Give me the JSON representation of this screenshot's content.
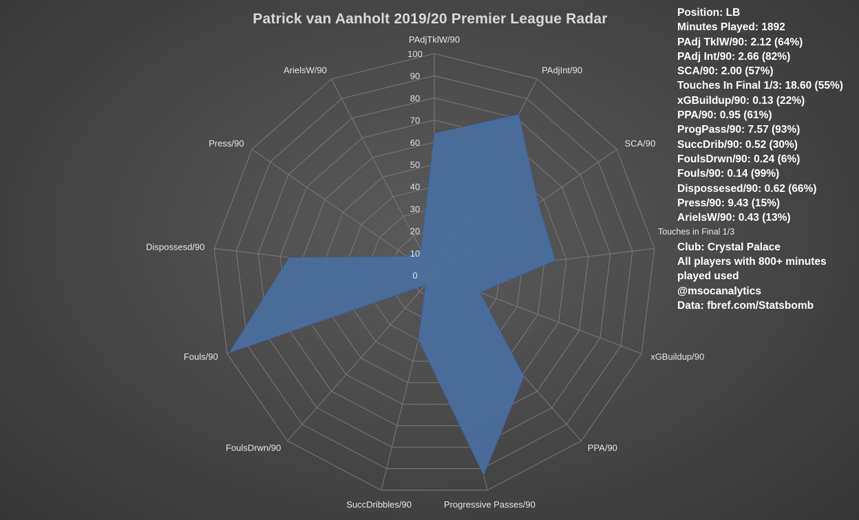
{
  "chart_data": {
    "type": "radar",
    "title": "Patrick van Aanholt 2019/20 Premier League Radar",
    "categories": [
      "PAdjTklW/90",
      "PAdjInt/90",
      "SCA/90",
      "Touches in Final 1/3",
      "xGBuildup/90",
      "PPA/90",
      "Progressive Passes/90",
      "SuccDribbles/90",
      "FoulsDrwn/90",
      "Fouls/90",
      "Dispossesd/90",
      "Press/90",
      "ArielsW/90"
    ],
    "values": [
      64,
      82,
      57,
      55,
      22,
      61,
      93,
      30,
      6,
      99,
      66,
      15,
      13
    ],
    "ylim": [
      0,
      100
    ],
    "ticks": [
      "0",
      "10",
      "20",
      "30",
      "40",
      "50",
      "60",
      "70",
      "80",
      "90",
      "100"
    ],
    "grid": true,
    "series_color": "#4a6fa0"
  },
  "info": {
    "lines": [
      "Position: LB",
      "Minutes Played: 1892",
      "PAdj TklW/90: 2.12 (64%)",
      "PAdj Int/90: 2.66 (82%)",
      "SCA/90: 2.00 (57%)",
      "Touches In Final 1/3: 18.60 (55%)",
      "xGBuildup/90: 0.13 (22%)",
      "PPA/90: 0.95 (61%)",
      "ProgPass/90: 7.57 (93%)",
      "SuccDrib/90: 0.52 (30%)",
      "FoulsDrwn/90: 0.24 (6%)",
      "Fouls/90: 0.14 (99%)",
      "Dispossesed/90: 0.62 (66%)",
      "Press/90: 9.43 (15%)",
      "ArielsW/90: 0.43 (13%)"
    ],
    "touches_label": "Touches in Final 1/3",
    "club": "Club: Crystal Palace",
    "note": "All players with 800+ minutes played used",
    "handle": "@msocanalytics",
    "source": "Data: fbref.com/Statsbomb"
  }
}
